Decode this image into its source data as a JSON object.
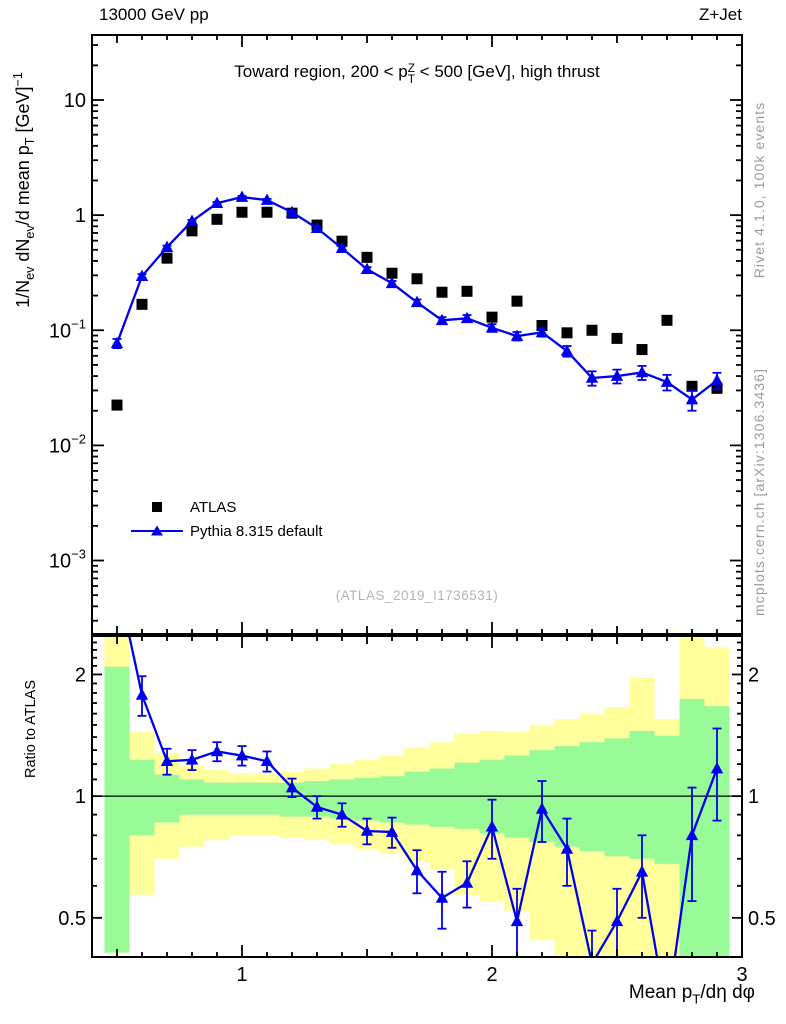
{
  "header": {
    "left": "13000 GeV pp",
    "right": "Z+Jet"
  },
  "panel_title": {
    "text": "Toward region, 200 < pTZ < 500 [GeV], high thrust",
    "parts": [
      {
        "t": "Toward region, 200 < p"
      },
      {
        "stack": {
          "sup": "Z",
          "sub": "T"
        }
      },
      {
        "t": " < 500 [GeV], high thrust"
      }
    ]
  },
  "y_axis_title": {
    "text": "1/Nev dNev/d mean pT [GeV]-1",
    "parts": [
      {
        "t": "1/N"
      },
      {
        "sub": "ev"
      },
      {
        "t": " dN"
      },
      {
        "sub": "ev"
      },
      {
        "t": "/d mean p"
      },
      {
        "sub": "T"
      },
      {
        "t": " [GeV]"
      },
      {
        "sup": "−1"
      }
    ]
  },
  "x_axis_title": {
    "text": "Mean pT/dη dφ",
    "parts": [
      {
        "t": "Mean p"
      },
      {
        "sub": "T"
      },
      {
        "t": "/dη dφ"
      }
    ]
  },
  "ratio_axis_title": "Ratio to ATLAS",
  "watermark": "(ATLAS_2019_I1736531)",
  "side_notes": {
    "top": "Rivet 4.1.0,  100k events",
    "bottom": "mcplots.cern.ch [arXiv:1306.3436]"
  },
  "legend": {
    "items": [
      {
        "label": "ATLAS",
        "marker": "black-square"
      },
      {
        "label": "Pythia 8.315 default",
        "marker": "blue-line-triangle"
      }
    ]
  },
  "chart_data": {
    "type": "line",
    "title": "Toward region, 200 < pTZ < 500 [GeV], high thrust",
    "xlabel": "Mean pT/dη dφ",
    "ylabel": "1/Nev dNev/d mean pT [GeV]-1",
    "ratio_label": "Ratio to ATLAS",
    "colors": {
      "atlas": "#000000",
      "pythia": "#0000ee",
      "band_yellow": "#ffff9c",
      "band_green": "#99fb98"
    },
    "x": [
      0.5,
      0.6,
      0.7,
      0.8,
      0.9,
      1.0,
      1.1,
      1.2,
      1.3,
      1.4,
      1.5,
      1.6,
      1.7,
      1.8,
      1.9,
      2.0,
      2.1,
      2.2,
      2.3,
      2.4,
      2.5,
      2.6,
      2.7,
      2.8,
      2.9
    ],
    "series": [
      {
        "name": "ATLAS",
        "marker": "square",
        "color": "#000000",
        "values": [
          0.0224,
          0.168,
          0.423,
          0.73,
          0.92,
          1.06,
          1.06,
          1.04,
          0.82,
          0.594,
          0.43,
          0.313,
          0.28,
          0.214,
          0.218,
          0.13,
          0.179,
          0.11,
          0.095,
          0.1,
          0.085,
          0.068,
          0.122,
          0.0326,
          0.0313
        ]
      },
      {
        "name": "Pythia 8.315 default",
        "marker": "triangle-line",
        "color": "#0000ee",
        "values": [
          0.077,
          0.295,
          0.527,
          0.887,
          1.27,
          1.435,
          1.35,
          1.06,
          0.771,
          0.516,
          0.339,
          0.256,
          0.175,
          0.122,
          0.127,
          0.105,
          0.089,
          0.096,
          0.066,
          0.0385,
          0.04,
          0.043,
          0.0355,
          0.025,
          0.0367
        ],
        "errors": [
          0.007,
          0.012,
          0.016,
          0.022,
          0.03,
          0.033,
          0.032,
          0.027,
          0.023,
          0.018,
          0.014,
          0.012,
          0.01,
          0.008,
          0.0085,
          0.008,
          0.0075,
          0.008,
          0.007,
          0.0055,
          0.0055,
          0.006,
          0.0055,
          0.005,
          0.006
        ]
      }
    ],
    "ratio": {
      "values": [
        3.45,
        1.78,
        1.22,
        1.23,
        1.29,
        1.26,
        1.22,
        1.05,
        0.94,
        0.9,
        0.82,
        0.815,
        0.655,
        0.56,
        0.61,
        0.84,
        0.49,
        0.93,
        0.74,
        0.385,
        0.49,
        0.65,
        0.29,
        0.8,
        1.17
      ],
      "errors": [
        0.5,
        0.2,
        0.09,
        0.07,
        0.07,
        0.07,
        0.07,
        0.055,
        0.06,
        0.06,
        0.06,
        0.07,
        0.08,
        0.09,
        0.08,
        0.14,
        0.1,
        0.16,
        0.14,
        0.08,
        0.1,
        0.15,
        0.08,
        0.25,
        0.3
      ]
    },
    "bands": {
      "yellow_hi": [
        2.51,
        1.44,
        1.28,
        1.19,
        1.16,
        1.14,
        1.14,
        1.15,
        1.17,
        1.2,
        1.23,
        1.26,
        1.32,
        1.36,
        1.43,
        1.45,
        1.44,
        1.5,
        1.55,
        1.6,
        1.66,
        1.97,
        1.55,
        2.47,
        2.33
      ],
      "green_hi": [
        2.09,
        1.23,
        1.13,
        1.1,
        1.08,
        1.08,
        1.08,
        1.08,
        1.09,
        1.1,
        1.11,
        1.12,
        1.15,
        1.17,
        1.21,
        1.23,
        1.26,
        1.3,
        1.33,
        1.36,
        1.39,
        1.45,
        1.41,
        1.74,
        1.67
      ],
      "green_lo": [
        0.41,
        0.8,
        0.86,
        0.9,
        0.9,
        0.9,
        0.9,
        0.89,
        0.89,
        0.88,
        0.87,
        0.86,
        0.85,
        0.84,
        0.83,
        0.81,
        0.79,
        0.77,
        0.75,
        0.73,
        0.71,
        0.7,
        0.68,
        0.4,
        0.4
      ],
      "yellow_lo": [
        0.41,
        0.57,
        0.7,
        0.75,
        0.78,
        0.8,
        0.8,
        0.79,
        0.78,
        0.76,
        0.74,
        0.72,
        0.69,
        0.66,
        0.57,
        0.55,
        0.52,
        0.44,
        0.4,
        0.4,
        0.4,
        0.4,
        0.4,
        0.4,
        0.4
      ]
    },
    "axes": {
      "x": [
        0.4,
        3.0
      ],
      "y": [
        0.00023,
        36.7
      ],
      "ratio_y": [
        0.4,
        2.49
      ],
      "x_ticks": [
        {
          "v": 1,
          "label": "1"
        },
        {
          "v": 2,
          "label": "2"
        },
        {
          "v": 3,
          "label": "3"
        }
      ],
      "y_ticks": [
        {
          "v": 10,
          "base": "10",
          "exp": ""
        },
        {
          "v": 1,
          "base": "1",
          "exp": ""
        },
        {
          "v": 0.1,
          "base": "10",
          "exp": "−1"
        },
        {
          "v": 0.01,
          "base": "10",
          "exp": "−2"
        },
        {
          "v": 0.001,
          "base": "10",
          "exp": "−3"
        }
      ],
      "ratio_ticks": [
        {
          "v": 2,
          "label": "2"
        },
        {
          "v": 1,
          "label": "1"
        },
        {
          "v": 0.5,
          "label": "0.5"
        }
      ],
      "grid": false,
      "y_scale": "log",
      "ratio_scale": "log",
      "legend_position": "left-middle"
    }
  }
}
